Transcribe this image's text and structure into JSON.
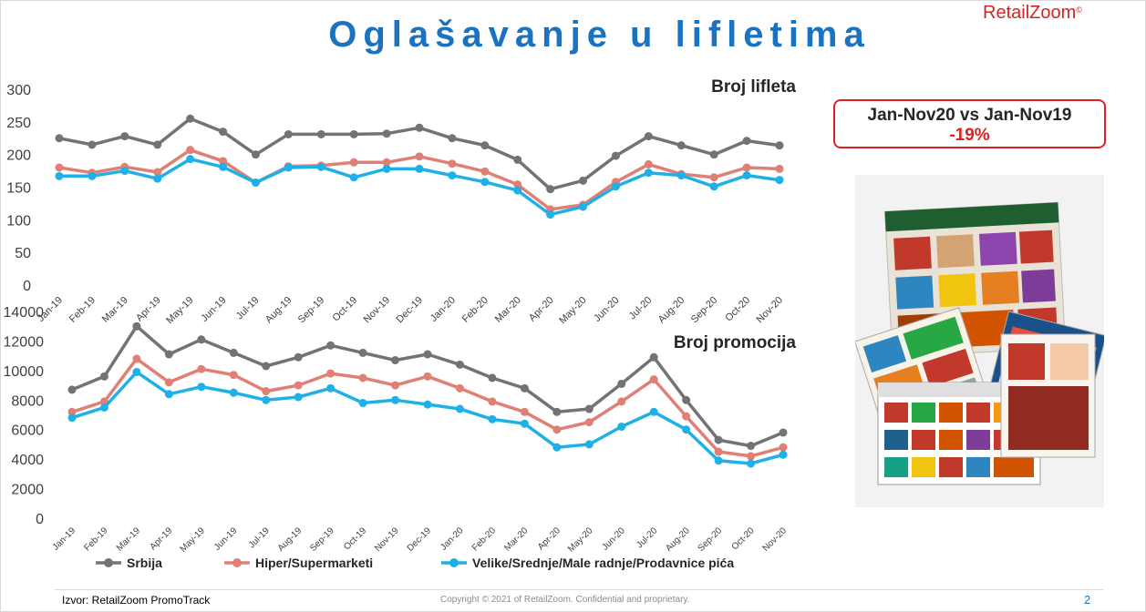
{
  "header": {
    "title": "Oglašavanje u lifletima",
    "logo_text": "RetailZoom",
    "logo_mark": "©"
  },
  "kpi": {
    "period_label": "Jan-Nov20 vs Jan-Nov19",
    "change": "-19%"
  },
  "colors": {
    "title": "#1a73c1",
    "accent_red": "#e02020",
    "srbija": "#737373",
    "hiper": "#e07f74",
    "velike": "#1fb0e8"
  },
  "footer": {
    "source": "Izvor: RetailZoom PromoTrack",
    "copyright": "Copyright © 2021 of RetailZoom. Confidential and proprietary.",
    "page": "2"
  },
  "chart_data": [
    {
      "type": "line",
      "title": "Broj lifleta",
      "ylim": [
        0,
        300
      ],
      "yticks": [
        0,
        50,
        100,
        150,
        200,
        250,
        300
      ],
      "grid": false,
      "categories": [
        "Jan-19",
        "Feb-19",
        "Mar-19",
        "Apr-19",
        "May-19",
        "Jun-19",
        "Jul-19",
        "Aug-19",
        "Sep-19",
        "Oct-19",
        "Nov-19",
        "Dec-19",
        "Jan-20",
        "Feb-20",
        "Mar-20",
        "Apr-20",
        "May-20",
        "Jun-20",
        "Jul-20",
        "Aug-20",
        "Sep-20",
        "Oct-20",
        "Nov-20"
      ],
      "series": [
        {
          "name": "Srbija",
          "values": [
            225,
            215,
            228,
            215,
            255,
            235,
            200,
            231,
            231,
            231,
            232,
            241,
            225,
            214,
            192,
            147,
            160,
            198,
            228,
            214,
            200,
            221,
            214
          ]
        },
        {
          "name": "Hiper/Supermarketi",
          "values": [
            180,
            172,
            181,
            173,
            207,
            190,
            157,
            182,
            183,
            188,
            188,
            197,
            186,
            174,
            154,
            116,
            123,
            158,
            185,
            170,
            165,
            180,
            178
          ]
        },
        {
          "name": "Velike/Srednje/Male radnje/Prodavnice pića",
          "values": [
            167,
            167,
            175,
            163,
            193,
            181,
            157,
            180,
            181,
            165,
            178,
            178,
            168,
            158,
            145,
            108,
            120,
            151,
            172,
            168,
            151,
            168,
            161
          ]
        }
      ]
    },
    {
      "type": "line",
      "title": "Broj promocija",
      "ylim": [
        0,
        14000
      ],
      "yticks": [
        0,
        2000,
        4000,
        6000,
        8000,
        10000,
        12000,
        14000
      ],
      "grid": false,
      "legend_position": "bottom",
      "categories": [
        "Jan-19",
        "Feb-19",
        "Mar-19",
        "Apr-19",
        "May-19",
        "Jun-19",
        "Jul-19",
        "Aug-19",
        "Sep-19",
        "Oct-19",
        "Nov-19",
        "Dec-19",
        "Jan-20",
        "Feb-20",
        "Mar-20",
        "Apr-20",
        "May-20",
        "Jun-20",
        "Jul-20",
        "Aug-20",
        "Sep-20",
        "Oct-20",
        "Nov-20"
      ],
      "series": [
        {
          "name": "Srbija",
          "values": [
            8700,
            9600,
            13000,
            11100,
            12100,
            11200,
            10300,
            10900,
            11700,
            11200,
            10700,
            11100,
            10400,
            9500,
            8800,
            7200,
            7400,
            9100,
            10900,
            8000,
            5300,
            4900,
            5800
          ]
        },
        {
          "name": "Hiper/Supermarketi",
          "values": [
            7200,
            7900,
            10800,
            9200,
            10100,
            9700,
            8600,
            9000,
            9800,
            9500,
            9000,
            9600,
            8800,
            7900,
            7200,
            6000,
            6500,
            7900,
            9400,
            6900,
            4500,
            4200,
            4800
          ]
        },
        {
          "name": "Velike/Srednje/Male radnje/Prodavnice pića",
          "values": [
            6800,
            7500,
            9900,
            8400,
            8900,
            8500,
            8000,
            8200,
            8800,
            7800,
            8000,
            7700,
            7400,
            6700,
            6400,
            4800,
            5000,
            6200,
            7200,
            6000,
            3900,
            3700,
            4300
          ]
        }
      ]
    }
  ]
}
